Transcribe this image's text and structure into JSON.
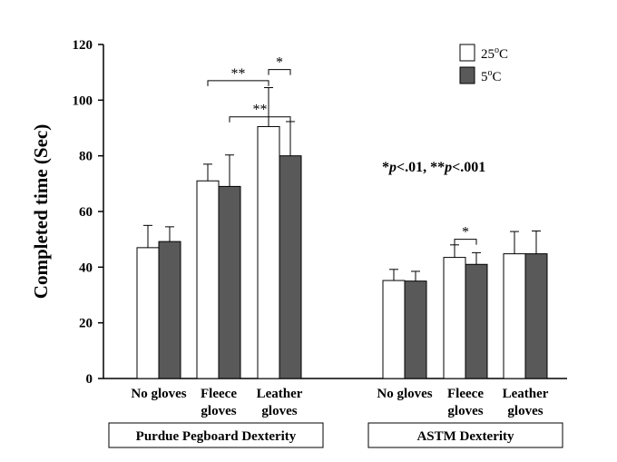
{
  "chart_data": {
    "type": "bar",
    "ylabel": "Completed time (Sec)",
    "ylim": [
      0,
      120
    ],
    "yticks": [
      0,
      20,
      40,
      60,
      80,
      100,
      120
    ],
    "series": [
      {
        "name": "25oC",
        "color": "#ffffff"
      },
      {
        "name": "5oC",
        "color": "#595959"
      }
    ],
    "legend": {
      "position": "top-right",
      "entries": [
        {
          "base": "25",
          "sup": "o",
          "unit": "C",
          "color": "#ffffff"
        },
        {
          "base": "5",
          "sup": "o",
          "unit": "C",
          "color": "#595959"
        }
      ]
    },
    "groups": [
      {
        "label": "Purdue Pegboard Dexterity",
        "categories": [
          {
            "label": [
              "No gloves"
            ],
            "values": [
              47,
              49.2
            ],
            "errors": [
              8,
              5.3
            ]
          },
          {
            "label": [
              "Fleece",
              "gloves"
            ],
            "values": [
              71,
              69
            ],
            "errors": [
              6,
              11.3
            ]
          },
          {
            "label": [
              "Leather",
              "gloves"
            ],
            "values": [
              90.5,
              80
            ],
            "errors": [
              14,
              12.3
            ]
          }
        ],
        "significance": [
          {
            "text": "**",
            "from": [
              1,
              0
            ],
            "to": [
              2,
              0
            ],
            "level": 107
          },
          {
            "text": "*",
            "from": [
              2,
              0
            ],
            "to": [
              2,
              1
            ],
            "level": 111
          },
          {
            "text": "**",
            "from": [
              1,
              1
            ],
            "to": [
              2,
              1
            ],
            "level": 94
          }
        ]
      },
      {
        "label": "ASTM Dexterity",
        "categories": [
          {
            "label": [
              "No gloves"
            ],
            "values": [
              35.2,
              35
            ],
            "errors": [
              4,
              3.5
            ]
          },
          {
            "label": [
              "Fleece",
              "gloves"
            ],
            "values": [
              43.5,
              41
            ],
            "errors": [
              4.5,
              4.2
            ]
          },
          {
            "label": [
              "Leather",
              "gloves"
            ],
            "values": [
              44.8,
              44.8
            ],
            "errors": [
              8,
              8.2
            ]
          }
        ],
        "significance": [
          {
            "text": "*",
            "from": [
              1,
              0
            ],
            "to": [
              1,
              1
            ],
            "level": 50
          }
        ]
      }
    ],
    "annotation": {
      "parts": [
        {
          "text": "*",
          "italic": false
        },
        {
          "text": "p",
          "italic": true
        },
        {
          "text": "<.01, **",
          "italic": false
        },
        {
          "text": "p",
          "italic": true
        },
        {
          "text": "<.001",
          "italic": false
        }
      ]
    }
  }
}
